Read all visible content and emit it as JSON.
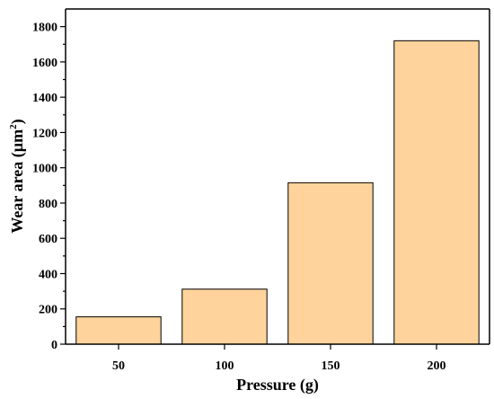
{
  "chart_data": {
    "type": "bar",
    "categories": [
      "50",
      "100",
      "150",
      "200"
    ],
    "values": [
      155,
      312,
      915,
      1720
    ],
    "xlabel": "Pressure (g)",
    "ylabel_text": "Wear area (µm",
    "ylabel_superscript": "2",
    "ylabel_close": ")",
    "ylim": [
      0,
      1900
    ],
    "yticks": [
      0,
      200,
      400,
      600,
      800,
      1000,
      1200,
      1400,
      1600,
      1800
    ],
    "bar_color": "#FFD39B",
    "edge_color": "#000000",
    "grid": false
  }
}
